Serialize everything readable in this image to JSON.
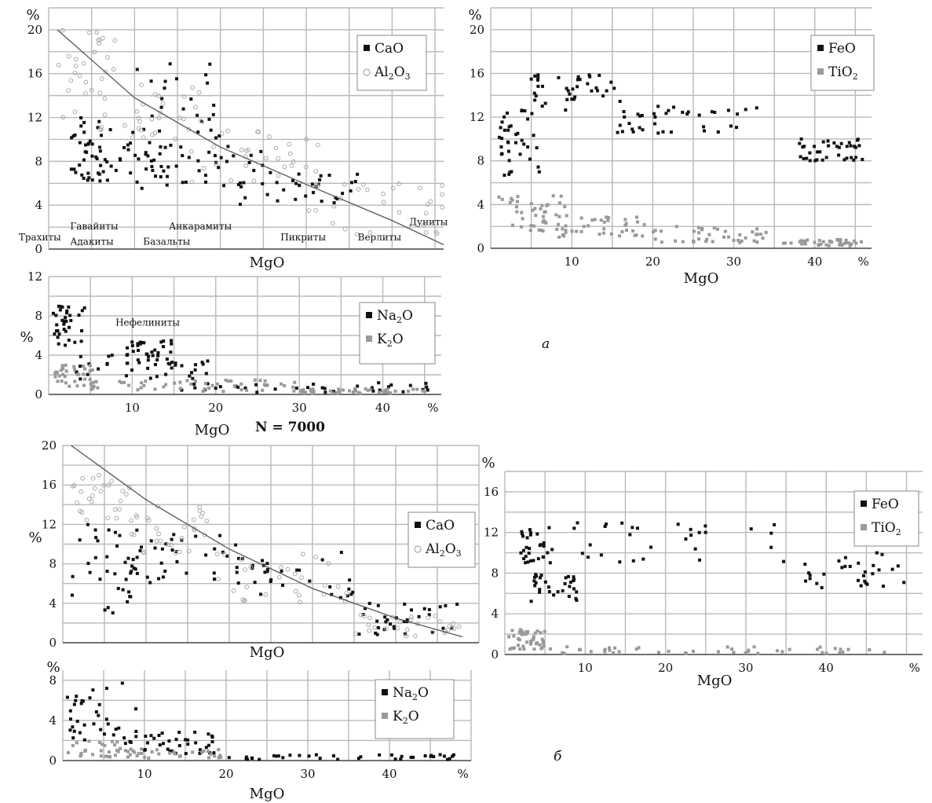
{
  "panel_labels": {
    "a": "а",
    "b": "б"
  },
  "n_label": "N = 7000",
  "chart_data": [
    {
      "id": "a1",
      "type": "scatter",
      "title": "",
      "xlabel": "MgO",
      "ylabel": "%",
      "xlim": [
        0,
        46
      ],
      "ylim": [
        0,
        22
      ],
      "grid": true,
      "legend_position": "top-right",
      "yticks": [
        "0",
        "4",
        "8",
        "12",
        "16",
        "20"
      ],
      "legend": [
        {
          "name": "CaO",
          "marker": "filled-square",
          "color": "#111111"
        },
        {
          "name": "Al",
          "sub": "2",
          "name2": "O",
          "sub2": "3",
          "marker": "open-circle",
          "color": "#aaaaaa"
        }
      ],
      "rock_labels": [
        "Трахиты",
        "Гавайиты",
        "Адакиты",
        "Анкарамиты",
        "Базальты",
        "Пикриты",
        "Верлиты",
        "Дуниты"
      ],
      "trend": {
        "x": [
          1,
          10,
          20,
          30,
          40,
          46
        ],
        "y": [
          20,
          13.8,
          9.3,
          5.9,
          2.6,
          0.4
        ]
      },
      "series": [
        {
          "name": "CaO",
          "clusters": [
            {
              "x": [
                2.5,
                7
              ],
              "y": [
                6,
                12
              ]
            },
            {
              "x": [
                4,
                14
              ],
              "y": [
                6.5,
                11
              ]
            },
            {
              "x": [
                10,
                25
              ],
              "y": [
                5.5,
                9.5
              ]
            },
            {
              "x": [
                22,
                36
              ],
              "y": [
                4,
                7
              ]
            },
            {
              "x": [
                9,
                20
              ],
              "y": [
                8,
                17
              ]
            }
          ]
        },
        {
          "name": "Al2O3",
          "clusters": [
            {
              "x": [
                1,
                8
              ],
              "y": [
                12,
                20
              ]
            },
            {
              "x": [
                6,
                18
              ],
              "y": [
                10,
                15
              ]
            },
            {
              "x": [
                16,
                32
              ],
              "y": [
                6,
                11
              ]
            },
            {
              "x": [
                30,
                46
              ],
              "y": [
                1,
                6
              ]
            }
          ]
        }
      ]
    },
    {
      "id": "a2",
      "type": "scatter",
      "title": "",
      "xlabel": "MgO",
      "ylabel": "%",
      "xlim": [
        0,
        47
      ],
      "ylim": [
        0,
        22
      ],
      "grid": true,
      "legend_position": "top-right",
      "xticks": [
        "10",
        "20",
        "30",
        "40",
        "%"
      ],
      "yticks": [
        "0",
        "4",
        "8",
        "12",
        "16",
        "20"
      ],
      "legend": [
        {
          "name": "FeO",
          "marker": "filled-square",
          "color": "#111111"
        },
        {
          "name": "TiO",
          "sub": "2",
          "marker": "filled-square",
          "color": "#999999"
        }
      ],
      "series": [
        {
          "name": "FeO",
          "clusters": [
            {
              "x": [
                1,
                6
              ],
              "y": [
                6.5,
                13
              ]
            },
            {
              "x": [
                5,
                16
              ],
              "y": [
                12.5,
                16
              ]
            },
            {
              "x": [
                15,
                33
              ],
              "y": [
                10.5,
                13
              ]
            },
            {
              "x": [
                38,
                46
              ],
              "y": [
                8,
                10
              ]
            }
          ]
        },
        {
          "name": "TiO2",
          "clusters": [
            {
              "x": [
                1,
                10
              ],
              "y": [
                1.5,
                5
              ]
            },
            {
              "x": [
                8,
                20
              ],
              "y": [
                1,
                3
              ]
            },
            {
              "x": [
                20,
                34
              ],
              "y": [
                0.5,
                2
              ]
            },
            {
              "x": [
                36,
                46
              ],
              "y": [
                0.2,
                0.8
              ]
            }
          ]
        }
      ]
    },
    {
      "id": "a3",
      "type": "scatter",
      "title": "",
      "xlabel": "MgO",
      "ylabel": "%",
      "xlim": [
        0,
        47
      ],
      "ylim": [
        0,
        12
      ],
      "grid": true,
      "legend_position": "right",
      "xticks": [
        "10",
        "20",
        "30",
        "40",
        "%"
      ],
      "yticks": [
        "0",
        "4",
        "8",
        "12"
      ],
      "annotation": "Нефелиниты",
      "legend": [
        {
          "name": "Na",
          "sub": "2",
          "name2": "O",
          "marker": "filled-square",
          "color": "#111111"
        },
        {
          "name": "K",
          "sub": "2",
          "name2": "O",
          "marker": "filled-square",
          "color": "#999999"
        }
      ],
      "series": [
        {
          "name": "Na2O",
          "clusters": [
            {
              "x": [
                0.5,
                5
              ],
              "y": [
                5,
                9
              ]
            },
            {
              "x": [
                9,
                15
              ],
              "y": [
                3,
                5.5
              ]
            },
            {
              "x": [
                3,
                20
              ],
              "y": [
                1.5,
                4
              ]
            },
            {
              "x": [
                15,
                46
              ],
              "y": [
                0.2,
                1.2
              ]
            }
          ]
        },
        {
          "name": "K2O",
          "clusters": [
            {
              "x": [
                0.5,
                6
              ],
              "y": [
                0.5,
                3
              ]
            },
            {
              "x": [
                5,
                30
              ],
              "y": [
                0.3,
                1.5
              ]
            },
            {
              "x": [
                30,
                46
              ],
              "y": [
                0.1,
                0.6
              ]
            }
          ]
        }
      ]
    },
    {
      "id": "b1",
      "type": "scatter",
      "title": "",
      "xlabel": "MgO",
      "ylabel": "%",
      "xlim": [
        0,
        50
      ],
      "ylim": [
        0,
        20
      ],
      "grid": true,
      "legend_position": "right",
      "yticks": [
        "0",
        "4",
        "8",
        "12",
        "16",
        "20"
      ],
      "legend": [
        {
          "name": "CaO",
          "marker": "filled-square",
          "color": "#111111"
        },
        {
          "name": "Al",
          "sub": "2",
          "name2": "O",
          "sub2": "3",
          "marker": "open-circle",
          "color": "#aaaaaa"
        }
      ],
      "trend": {
        "x": [
          1,
          10,
          20,
          30,
          40,
          48
        ],
        "y": [
          20,
          14.5,
          9.5,
          5.5,
          2.5,
          0.6
        ]
      },
      "series": [
        {
          "name": "CaO",
          "clusters": [
            {
              "x": [
                1,
                9
              ],
              "y": [
                3,
                12
              ]
            },
            {
              "x": [
                8,
                20
              ],
              "y": [
                6,
                11
              ]
            },
            {
              "x": [
                20,
                35
              ],
              "y": [
                4,
                10
              ]
            },
            {
              "x": [
                35,
                48
              ],
              "y": [
                0.5,
                4
              ]
            }
          ]
        },
        {
          "name": "Al2O3",
          "clusters": [
            {
              "x": [
                1,
                9
              ],
              "y": [
                12,
                17
              ]
            },
            {
              "x": [
                8,
                18
              ],
              "y": [
                9,
                14
              ]
            },
            {
              "x": [
                18,
                35
              ],
              "y": [
                4,
                9
              ]
            },
            {
              "x": [
                35,
                48
              ],
              "y": [
                0.5,
                3
              ]
            }
          ]
        }
      ]
    },
    {
      "id": "b2",
      "type": "scatter",
      "title": "",
      "xlabel": "MgO",
      "ylabel": "%",
      "xlim": [
        0,
        50
      ],
      "ylim": [
        0,
        9
      ],
      "grid": true,
      "legend_position": "right",
      "xticks": [
        "10",
        "20",
        "30",
        "40",
        "%"
      ],
      "yticks": [
        "0",
        "4",
        "8"
      ],
      "legend": [
        {
          "name": "Na",
          "sub": "2",
          "name2": "O",
          "marker": "filled-square",
          "color": "#111111"
        },
        {
          "name": "K",
          "sub": "2",
          "name2": "O",
          "marker": "filled-square",
          "color": "#999999"
        }
      ],
      "series": [
        {
          "name": "Na2O",
          "clusters": [
            {
              "x": [
                0.5,
                9
              ],
              "y": [
                1.5,
                8
              ]
            },
            {
              "x": [
                8,
                20
              ],
              "y": [
                0.5,
                3
              ]
            },
            {
              "x": [
                20,
                48
              ],
              "y": [
                0.1,
                0.6
              ]
            }
          ]
        },
        {
          "name": "K2O",
          "clusters": [
            {
              "x": [
                0.5,
                8
              ],
              "y": [
                0.3,
                2
              ]
            },
            {
              "x": [
                8,
                20
              ],
              "y": [
                0.2,
                1.2
              ]
            }
          ]
        }
      ]
    },
    {
      "id": "b3",
      "type": "scatter",
      "title": "",
      "xlabel": "MgO",
      "ylabel": "%",
      "xlim": [
        0,
        52
      ],
      "ylim": [
        0,
        18
      ],
      "grid": true,
      "legend_position": "top-right",
      "xticks": [
        "10",
        "20",
        "30",
        "40",
        "%"
      ],
      "yticks": [
        "0",
        "4",
        "8",
        "12",
        "16"
      ],
      "legend": [
        {
          "name": "FeO",
          "marker": "filled-square",
          "color": "#111111"
        },
        {
          "name": "TiO",
          "sub": "2",
          "marker": "filled-square",
          "color": "#999999"
        }
      ],
      "series": [
        {
          "name": "FeO",
          "clusters": [
            {
              "x": [
                2,
                6
              ],
              "y": [
                9,
                13
              ]
            },
            {
              "x": [
                3,
                9
              ],
              "y": [
                5,
                8
              ]
            },
            {
              "x": [
                8,
                35
              ],
              "y": [
                9,
                13
              ]
            },
            {
              "x": [
                35,
                50
              ],
              "y": [
                6.5,
                10
              ]
            }
          ]
        },
        {
          "name": "TiO2",
          "clusters": [
            {
              "x": [
                0.5,
                5
              ],
              "y": [
                0.5,
                2.5
              ]
            },
            {
              "x": [
                5,
                50
              ],
              "y": [
                0.1,
                0.8
              ]
            }
          ]
        }
      ]
    }
  ]
}
